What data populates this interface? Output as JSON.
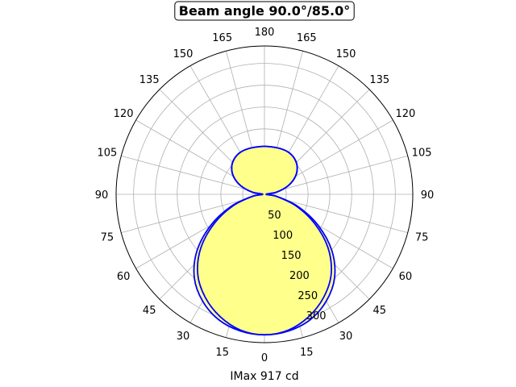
{
  "chart_data": {
    "type": "polar",
    "title": "Beam angle 90.0°/85.0°",
    "xlabel": "IMax 917 cd",
    "radial_range": [
      0,
      340
    ],
    "radial_ticks": [
      50,
      100,
      150,
      200,
      250,
      300
    ],
    "angle_ticks": [
      {
        "angle": 0,
        "label": "0"
      },
      {
        "angle": 15,
        "label": "15"
      },
      {
        "angle": 30,
        "label": "30"
      },
      {
        "angle": 45,
        "label": "45"
      },
      {
        "angle": 60,
        "label": "60"
      },
      {
        "angle": 75,
        "label": "75"
      },
      {
        "angle": 90,
        "label": "90"
      },
      {
        "angle": 105,
        "label": "105"
      },
      {
        "angle": 120,
        "label": "120"
      },
      {
        "angle": 135,
        "label": "135"
      },
      {
        "angle": 150,
        "label": "150"
      },
      {
        "angle": 165,
        "label": "165"
      },
      {
        "angle": 180,
        "label": "180"
      },
      {
        "angle": -165,
        "label": "165"
      },
      {
        "angle": -150,
        "label": "150"
      },
      {
        "angle": -135,
        "label": "135"
      },
      {
        "angle": -120,
        "label": "120"
      },
      {
        "angle": -105,
        "label": "105"
      },
      {
        "angle": -90,
        "label": "90"
      },
      {
        "angle": -75,
        "label": "75"
      },
      {
        "angle": -60,
        "label": "60"
      },
      {
        "angle": -45,
        "label": "45"
      },
      {
        "angle": -30,
        "label": "30"
      },
      {
        "angle": -15,
        "label": "15"
      }
    ],
    "grid": true,
    "fill_color": "#ffff88",
    "line_color": "#0000ff",
    "series": [
      {
        "angles": [
          0,
          10,
          20,
          30,
          40,
          50,
          60,
          70,
          80,
          90,
          100,
          110,
          120,
          130,
          140,
          150,
          160,
          170,
          180
        ],
        "values": [
          322,
          316,
          298,
          272,
          238,
          190,
          132,
          76,
          28,
          4,
          28,
          58,
          82,
          98,
          107,
          111,
          111,
          110,
          110
        ]
      },
      {
        "angles": [
          0,
          10,
          20,
          30,
          40,
          50,
          60,
          70,
          80,
          90,
          100,
          110,
          120,
          130,
          140,
          150,
          160,
          170,
          180
        ],
        "values": [
          322,
          318,
          306,
          283,
          250,
          202,
          142,
          82,
          30,
          4,
          28,
          58,
          82,
          98,
          107,
          111,
          111,
          110,
          110
        ]
      }
    ]
  }
}
